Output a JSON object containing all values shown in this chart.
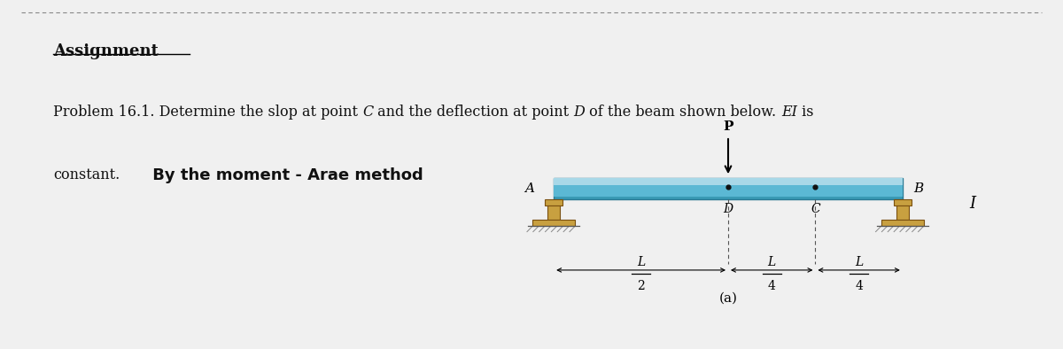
{
  "title": "Assignment",
  "line1_parts": [
    [
      "Problem 16.1. Determine the slop at point ",
      false
    ],
    [
      "C",
      true
    ],
    [
      " and the deflection at point ",
      false
    ],
    [
      "D",
      true
    ],
    [
      " of the beam shown below. ",
      false
    ],
    [
      "EI",
      true
    ],
    [
      " is",
      false
    ]
  ],
  "line2_normal": "constant.",
  "line2_bold": " By the moment - Arae method",
  "background_color": "#f0f0f0",
  "panel_bg": "#f5f0d5",
  "beam_color_dark": "#3a9ab5",
  "beam_color_mid": "#5bb8d4",
  "beam_color_top": "#a8d8e8",
  "text_color": "#111111",
  "label_A": "A",
  "label_B": "B",
  "label_C": "C",
  "label_D": "D",
  "label_P": "P",
  "label_I": "I",
  "label_a": "(a)",
  "fig_width": 12.0,
  "fig_height": 3.94
}
